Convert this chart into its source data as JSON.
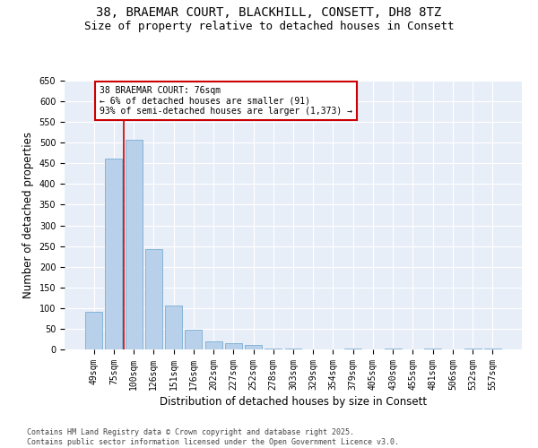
{
  "title_line1": "38, BRAEMAR COURT, BLACKHILL, CONSETT, DH8 8TZ",
  "title_line2": "Size of property relative to detached houses in Consett",
  "xlabel": "Distribution of detached houses by size in Consett",
  "ylabel": "Number of detached properties",
  "categories": [
    "49sqm",
    "75sqm",
    "100sqm",
    "126sqm",
    "151sqm",
    "176sqm",
    "202sqm",
    "227sqm",
    "252sqm",
    "278sqm",
    "303sqm",
    "329sqm",
    "354sqm",
    "379sqm",
    "405sqm",
    "430sqm",
    "455sqm",
    "481sqm",
    "506sqm",
    "532sqm",
    "557sqm"
  ],
  "values": [
    90,
    462,
    507,
    242,
    106,
    48,
    20,
    16,
    10,
    3,
    3,
    0,
    0,
    3,
    0,
    3,
    0,
    3,
    0,
    3,
    3
  ],
  "bar_color": "#b8d0ea",
  "bar_edge_color": "#7aadd4",
  "vline_x": 1.5,
  "vline_color": "#cc0000",
  "annotation_text": "38 BRAEMAR COURT: 76sqm\n← 6% of detached houses are smaller (91)\n93% of semi-detached houses are larger (1,373) →",
  "annotation_box_color": "#ffffff",
  "annotation_box_edge": "#cc0000",
  "ylim": [
    0,
    650
  ],
  "yticks": [
    0,
    50,
    100,
    150,
    200,
    250,
    300,
    350,
    400,
    450,
    500,
    550,
    600,
    650
  ],
  "background_color": "#e8eef8",
  "footnote": "Contains HM Land Registry data © Crown copyright and database right 2025.\nContains public sector information licensed under the Open Government Licence v3.0.",
  "title_fontsize": 10,
  "subtitle_fontsize": 9,
  "axis_label_fontsize": 8.5,
  "tick_fontsize": 7,
  "annotation_fontsize": 7,
  "footnote_fontsize": 6
}
